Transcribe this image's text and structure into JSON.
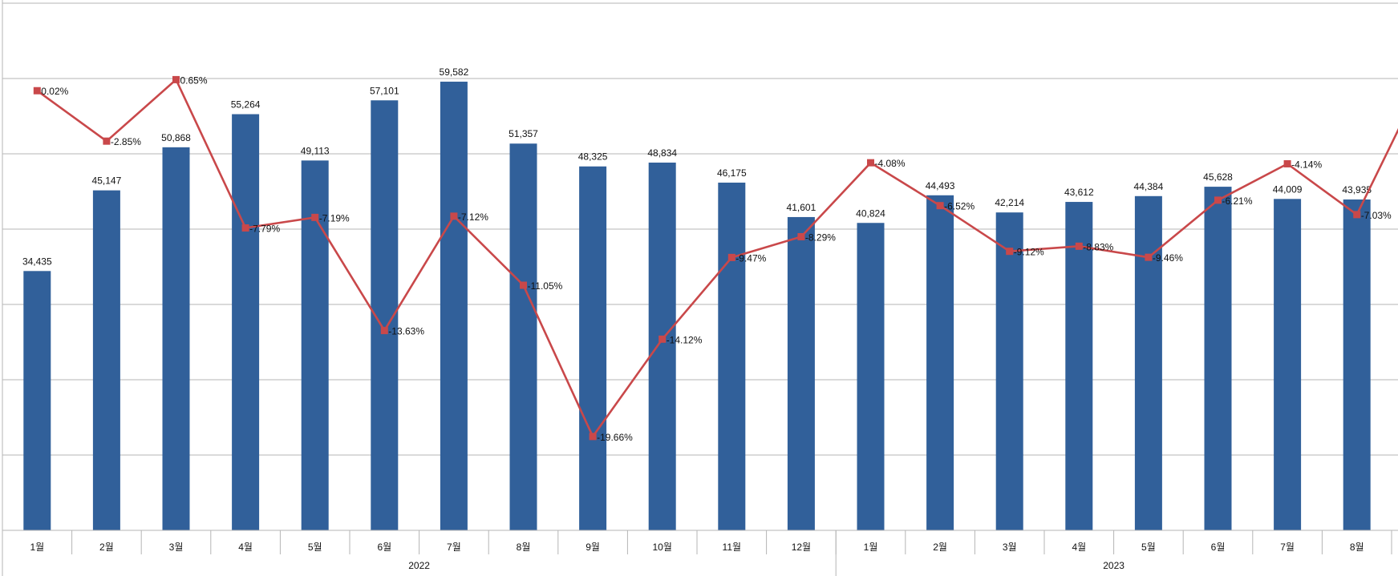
{
  "chart_data": {
    "type": "bar",
    "title": "",
    "xlabel": "",
    "ylabel": "",
    "ylim": [
      0,
      70000
    ],
    "grid": true,
    "legend": "none",
    "categories": [
      "1월",
      "2월",
      "3월",
      "4월",
      "5월",
      "6월",
      "7월",
      "8월",
      "9월",
      "10월",
      "11월",
      "12월",
      "1월",
      "2월",
      "3월",
      "4월",
      "5월",
      "6월",
      "7월",
      "8월"
    ],
    "groups": [
      {
        "label": "2022",
        "start": 0,
        "end": 11
      },
      {
        "label": "2023",
        "start": 12,
        "end": 19
      }
    ],
    "series": [
      {
        "kind": "bar",
        "color": "#31609a",
        "values": [
          34435,
          45147,
          50868,
          55264,
          49113,
          57101,
          59582,
          51357,
          48325,
          48834,
          46175,
          41601,
          40824,
          44493,
          42214,
          43612,
          44384,
          45628,
          44009,
          43935
        ],
        "labels": [
          "34,435",
          "45,147",
          "50,868",
          "55,264",
          "49,113",
          "57,101",
          "59,582",
          "51,357",
          "48,325",
          "48,834",
          "46,175",
          "41,601",
          "40,824",
          "44,493",
          "42,214",
          "43,612",
          "44,384",
          "45,628",
          "44,009",
          "43,935"
        ]
      },
      {
        "kind": "line",
        "color": "#c9484a",
        "values": [
          0.02,
          -2.85,
          0.65,
          -7.79,
          -7.19,
          -13.63,
          -7.12,
          -11.05,
          -19.66,
          -14.12,
          -9.47,
          -8.29,
          -4.08,
          -6.52,
          -9.12,
          -8.83,
          -9.46,
          -6.21,
          -4.14,
          -7.03
        ],
        "labels": [
          "0.02%",
          "-2.85%",
          "0.65%",
          "-7.79%",
          "-7.19%",
          "-13.63%",
          "-7.12%",
          "-11.05%",
          "-19.66%",
          "-14.12%",
          "-9.47%",
          "-8.29%",
          "-4.08%",
          "-6.52%",
          "-9.12%",
          "-8.83%",
          "-9.46%",
          "-6.21%",
          "-4.14%",
          "-7.03%"
        ],
        "ylim": [
          -25,
          5
        ]
      }
    ]
  }
}
